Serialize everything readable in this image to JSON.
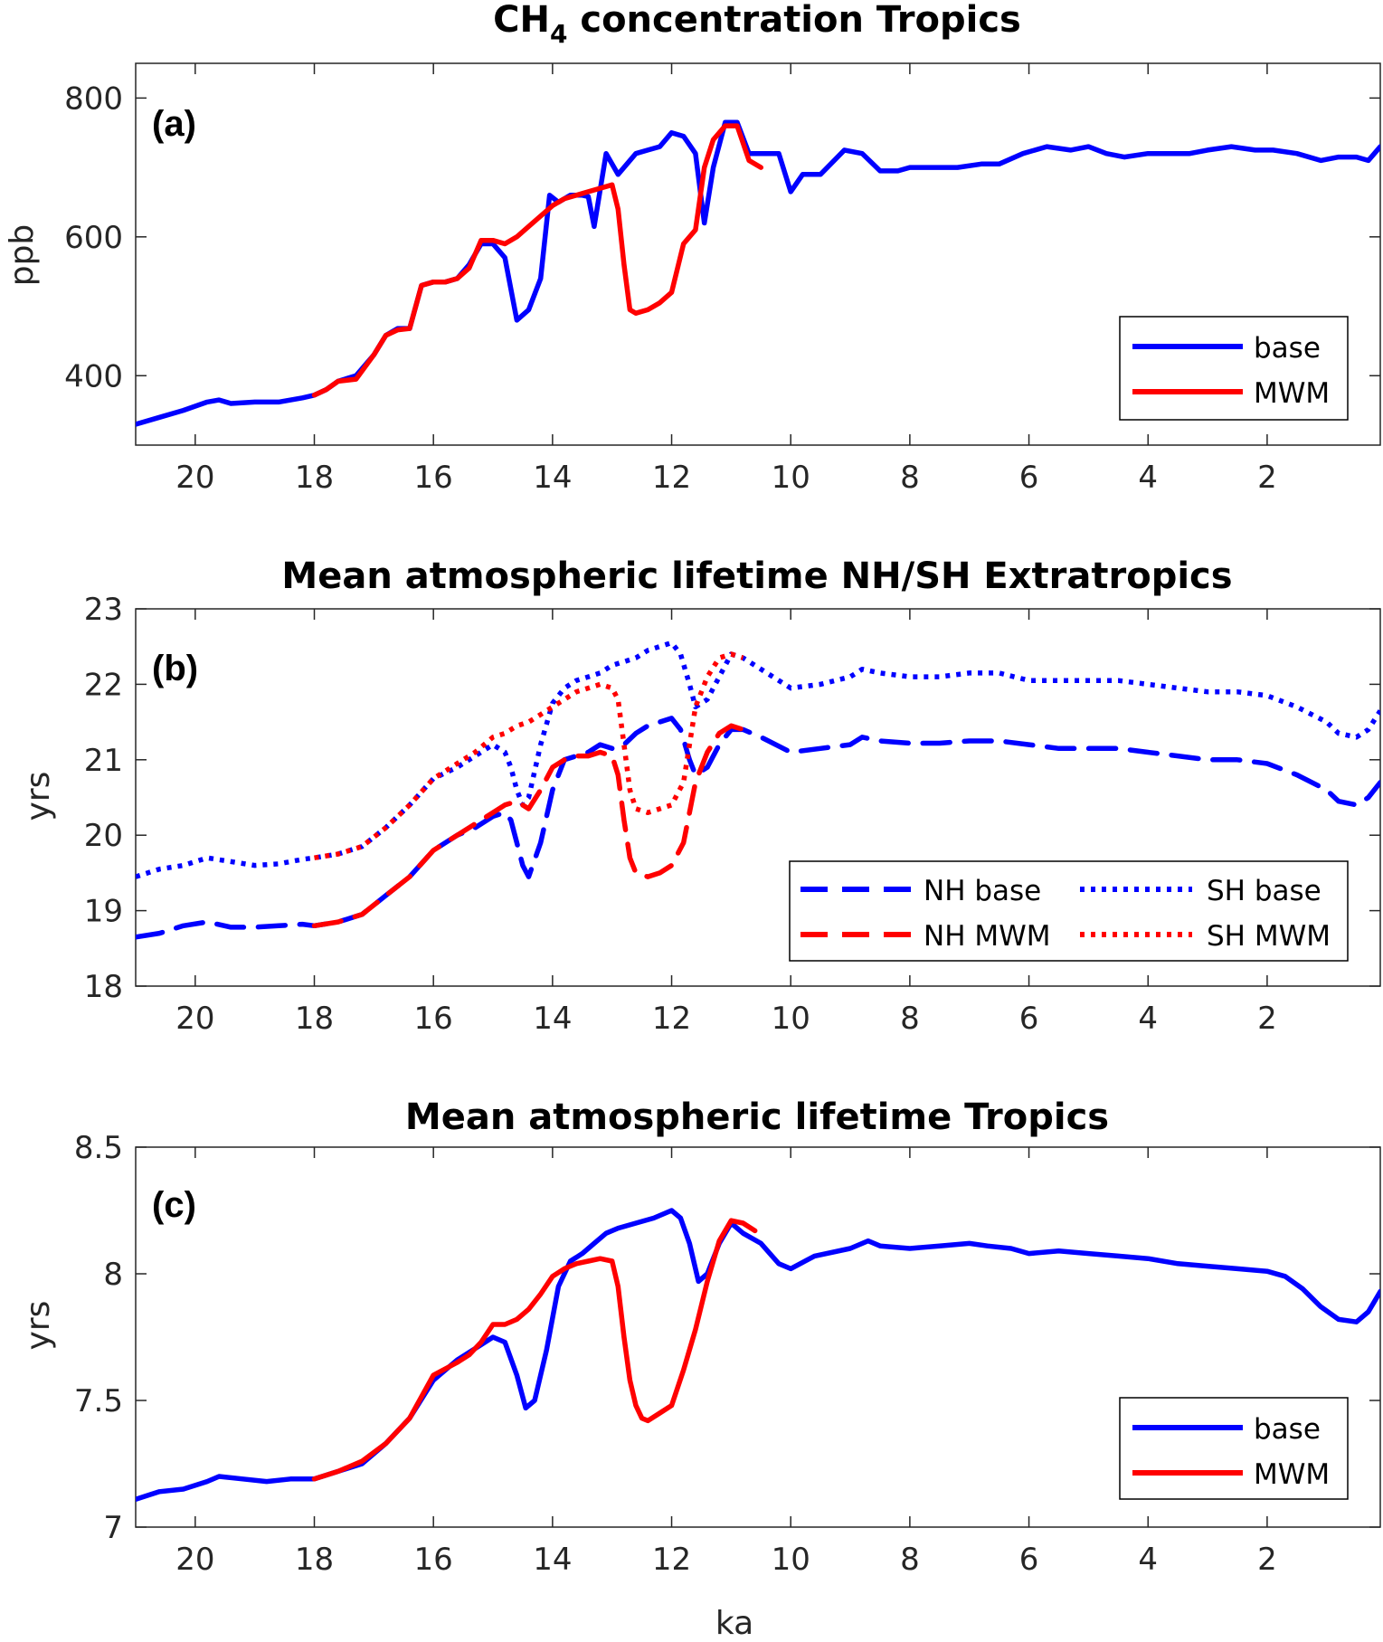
{
  "figure": {
    "x_axis_label": "ka"
  },
  "chart_data": [
    {
      "type": "line",
      "panel_label": "(a)",
      "title_main": "CH",
      "title_sub": "4",
      "title_rest": " concentration Tropics",
      "ylabel": "ppb",
      "xlabel": "",
      "x_reversed": true,
      "xlim": [
        21.0,
        0.1
      ],
      "ylim": [
        300,
        850
      ],
      "xticks": [
        20,
        18,
        16,
        14,
        12,
        10,
        8,
        6,
        4,
        2
      ],
      "yticks": [
        400,
        600,
        800
      ],
      "legend_position": "bottom-right",
      "series": [
        {
          "name": "base",
          "color": "#0000ff",
          "style": "solid",
          "x": [
            21.0,
            20.6,
            20.2,
            19.8,
            19.6,
            19.4,
            19.0,
            18.6,
            18.2,
            18.0,
            17.8,
            17.6,
            17.3,
            17.0,
            16.8,
            16.6,
            16.4,
            16.2,
            16.0,
            15.8,
            15.6,
            15.4,
            15.2,
            15.0,
            14.8,
            14.6,
            14.4,
            14.2,
            14.05,
            13.9,
            13.7,
            13.5,
            13.4,
            13.3,
            13.1,
            12.9,
            12.6,
            12.4,
            12.2,
            12.0,
            11.8,
            11.6,
            11.45,
            11.3,
            11.1,
            10.9,
            10.7,
            10.5,
            10.2,
            10.0,
            9.8,
            9.5,
            9.1,
            8.8,
            8.5,
            8.2,
            8.0,
            7.6,
            7.2,
            6.8,
            6.5,
            6.1,
            5.7,
            5.3,
            5.0,
            4.7,
            4.4,
            4.0,
            3.6,
            3.3,
            3.0,
            2.6,
            2.2,
            1.9,
            1.5,
            1.1,
            0.8,
            0.5,
            0.3,
            0.1
          ],
          "y": [
            330,
            340,
            350,
            362,
            365,
            360,
            362,
            362,
            368,
            372,
            380,
            392,
            400,
            430,
            458,
            468,
            468,
            530,
            535,
            535,
            540,
            560,
            590,
            590,
            570,
            480,
            495,
            540,
            660,
            650,
            660,
            660,
            658,
            615,
            720,
            690,
            720,
            725,
            730,
            750,
            745,
            720,
            620,
            700,
            765,
            765,
            720,
            720,
            720,
            665,
            690,
            690,
            725,
            720,
            695,
            695,
            700,
            700,
            700,
            705,
            705,
            720,
            730,
            725,
            730,
            720,
            715,
            720,
            720,
            720,
            725,
            730,
            725,
            725,
            720,
            710,
            715,
            715,
            710,
            730
          ]
        },
        {
          "name": "MWM",
          "color": "#ff0000",
          "style": "solid",
          "x": [
            18.0,
            17.8,
            17.6,
            17.3,
            17.0,
            16.8,
            16.6,
            16.4,
            16.2,
            16.0,
            15.8,
            15.6,
            15.4,
            15.2,
            15.0,
            14.8,
            14.6,
            14.4,
            14.2,
            14.0,
            13.8,
            13.6,
            13.4,
            13.2,
            13.0,
            12.9,
            12.8,
            12.7,
            12.6,
            12.4,
            12.2,
            12.0,
            11.8,
            11.6,
            11.45,
            11.3,
            11.1,
            10.9,
            10.7,
            10.5
          ],
          "y": [
            372,
            380,
            392,
            395,
            430,
            458,
            466,
            468,
            530,
            535,
            535,
            540,
            555,
            595,
            595,
            590,
            600,
            615,
            630,
            645,
            655,
            660,
            665,
            670,
            675,
            640,
            560,
            495,
            490,
            495,
            505,
            520,
            590,
            610,
            700,
            740,
            760,
            760,
            710,
            700
          ]
        }
      ]
    },
    {
      "type": "line",
      "panel_label": "(b)",
      "title": "Mean atmospheric lifetime NH/SH Extratropics",
      "ylabel": "yrs",
      "xlabel": "",
      "x_reversed": true,
      "xlim": [
        21.0,
        0.1
      ],
      "ylim": [
        18,
        23
      ],
      "xticks": [
        20,
        18,
        16,
        14,
        12,
        10,
        8,
        6,
        4,
        2
      ],
      "yticks": [
        18,
        19,
        20,
        21,
        22,
        23
      ],
      "legend_position": "bottom-right",
      "series": [
        {
          "name": "NH base",
          "color": "#0000ff",
          "style": "dashed",
          "x": [
            21.0,
            20.6,
            20.2,
            19.8,
            19.4,
            19.0,
            18.6,
            18.2,
            18.0,
            17.6,
            17.2,
            16.8,
            16.4,
            16.0,
            15.6,
            15.3,
            15.0,
            14.8,
            14.7,
            14.6,
            14.5,
            14.4,
            14.2,
            14.0,
            13.8,
            13.6,
            13.4,
            13.2,
            13.0,
            12.8,
            12.6,
            12.4,
            12.2,
            12.0,
            11.85,
            11.7,
            11.6,
            11.4,
            11.2,
            11.0,
            10.8,
            10.5,
            10.0,
            9.5,
            9.0,
            8.8,
            8.5,
            8.0,
            7.5,
            7.0,
            6.5,
            6.0,
            5.5,
            5.0,
            4.5,
            4.0,
            3.5,
            3.0,
            2.5,
            2.0,
            1.5,
            1.0,
            0.8,
            0.5,
            0.3,
            0.1
          ],
          "y": [
            18.65,
            18.7,
            18.8,
            18.85,
            18.78,
            18.78,
            18.8,
            18.82,
            18.8,
            18.85,
            18.95,
            19.2,
            19.45,
            19.8,
            20.0,
            20.1,
            20.25,
            20.3,
            20.2,
            19.9,
            19.6,
            19.45,
            19.9,
            20.6,
            21.0,
            21.05,
            21.1,
            21.2,
            21.15,
            21.2,
            21.35,
            21.45,
            21.5,
            21.55,
            21.4,
            21.0,
            20.8,
            20.9,
            21.2,
            21.4,
            21.4,
            21.3,
            21.1,
            21.15,
            21.2,
            21.3,
            21.25,
            21.22,
            21.22,
            21.25,
            21.25,
            21.2,
            21.15,
            21.15,
            21.15,
            21.1,
            21.05,
            21.0,
            21.0,
            20.95,
            20.8,
            20.6,
            20.45,
            20.4,
            20.5,
            20.7
          ]
        },
        {
          "name": "SH base",
          "color": "#0000ff",
          "style": "dotted",
          "x": [
            21.0,
            20.6,
            20.2,
            19.8,
            19.4,
            19.0,
            18.6,
            18.2,
            18.0,
            17.6,
            17.2,
            16.8,
            16.4,
            16.0,
            15.6,
            15.3,
            15.0,
            14.8,
            14.7,
            14.6,
            14.5,
            14.4,
            14.2,
            14.0,
            13.8,
            13.6,
            13.4,
            13.2,
            13.0,
            12.8,
            12.6,
            12.4,
            12.2,
            12.0,
            11.85,
            11.7,
            11.6,
            11.4,
            11.2,
            11.0,
            10.8,
            10.5,
            10.0,
            9.5,
            9.0,
            8.8,
            8.5,
            8.0,
            7.5,
            7.0,
            6.5,
            6.0,
            5.5,
            5.0,
            4.5,
            4.0,
            3.5,
            3.0,
            2.5,
            2.0,
            1.5,
            1.0,
            0.8,
            0.5,
            0.3,
            0.1
          ],
          "y": [
            19.45,
            19.55,
            19.6,
            19.7,
            19.65,
            19.6,
            19.62,
            19.68,
            19.7,
            19.75,
            19.85,
            20.1,
            20.4,
            20.75,
            20.9,
            21.05,
            21.2,
            21.1,
            20.9,
            20.6,
            20.4,
            20.5,
            21.2,
            21.75,
            21.95,
            22.05,
            22.1,
            22.15,
            22.25,
            22.3,
            22.35,
            22.45,
            22.5,
            22.55,
            22.4,
            22.0,
            21.7,
            21.8,
            22.1,
            22.4,
            22.35,
            22.2,
            21.95,
            22.0,
            22.1,
            22.2,
            22.15,
            22.1,
            22.1,
            22.15,
            22.15,
            22.05,
            22.05,
            22.05,
            22.05,
            22.0,
            21.95,
            21.9,
            21.9,
            21.85,
            21.7,
            21.5,
            21.35,
            21.3,
            21.4,
            21.65
          ]
        },
        {
          "name": "NH MWM",
          "color": "#ff0000",
          "style": "dashed",
          "x": [
            18.0,
            17.6,
            17.2,
            16.8,
            16.4,
            16.0,
            15.6,
            15.3,
            15.0,
            14.8,
            14.6,
            14.4,
            14.2,
            14.0,
            13.8,
            13.6,
            13.4,
            13.2,
            13.0,
            12.9,
            12.8,
            12.7,
            12.6,
            12.4,
            12.2,
            12.0,
            11.8,
            11.7,
            11.6,
            11.4,
            11.2,
            11.0,
            10.8
          ],
          "y": [
            18.8,
            18.85,
            18.95,
            19.2,
            19.45,
            19.8,
            20.0,
            20.15,
            20.3,
            20.4,
            20.45,
            20.35,
            20.6,
            20.9,
            21.0,
            21.05,
            21.05,
            21.1,
            21.05,
            20.8,
            20.2,
            19.7,
            19.5,
            19.45,
            19.5,
            19.6,
            19.9,
            20.3,
            20.7,
            21.1,
            21.35,
            21.45,
            21.4
          ]
        },
        {
          "name": "SH MWM",
          "color": "#ff0000",
          "style": "dotted",
          "x": [
            18.0,
            17.6,
            17.2,
            16.8,
            16.4,
            16.0,
            15.6,
            15.3,
            15.0,
            14.8,
            14.6,
            14.4,
            14.2,
            14.0,
            13.8,
            13.6,
            13.4,
            13.2,
            13.0,
            12.9,
            12.8,
            12.7,
            12.6,
            12.4,
            12.2,
            12.0,
            11.8,
            11.7,
            11.6,
            11.4,
            11.2,
            11.0,
            10.8
          ],
          "y": [
            19.7,
            19.75,
            19.85,
            20.1,
            20.4,
            20.75,
            20.95,
            21.1,
            21.3,
            21.35,
            21.45,
            21.5,
            21.6,
            21.7,
            21.8,
            21.9,
            21.95,
            22.0,
            21.95,
            21.8,
            21.2,
            20.6,
            20.35,
            20.3,
            20.35,
            20.4,
            20.7,
            21.2,
            21.7,
            22.1,
            22.35,
            22.4,
            22.35
          ]
        }
      ]
    },
    {
      "type": "line",
      "panel_label": "(c)",
      "title": "Mean atmospheric lifetime Tropics",
      "ylabel": "yrs",
      "xlabel": "ka",
      "x_reversed": true,
      "xlim": [
        21.0,
        0.1
      ],
      "ylim": [
        7.0,
        8.5
      ],
      "xticks": [
        20,
        18,
        16,
        14,
        12,
        10,
        8,
        6,
        4,
        2
      ],
      "yticks": [
        7.0,
        7.5,
        8.0,
        8.5
      ],
      "ytick_labels": [
        "7",
        "7.5",
        "8",
        "8.5"
      ],
      "legend_position": "bottom-right",
      "series": [
        {
          "name": "base",
          "color": "#0000ff",
          "style": "solid",
          "x": [
            21.0,
            20.6,
            20.2,
            19.8,
            19.6,
            19.2,
            18.8,
            18.4,
            18.0,
            17.6,
            17.2,
            16.8,
            16.4,
            16.0,
            15.6,
            15.2,
            15.0,
            14.8,
            14.6,
            14.45,
            14.3,
            14.1,
            13.9,
            13.7,
            13.5,
            13.3,
            13.1,
            12.9,
            12.6,
            12.3,
            12.0,
            11.85,
            11.7,
            11.55,
            11.4,
            11.2,
            11.0,
            10.8,
            10.5,
            10.2,
            10.0,
            9.6,
            9.0,
            8.7,
            8.5,
            8.0,
            7.5,
            7.0,
            6.7,
            6.3,
            6.0,
            5.5,
            5.0,
            4.5,
            4.0,
            3.5,
            3.0,
            2.5,
            2.0,
            1.7,
            1.4,
            1.1,
            0.8,
            0.5,
            0.3,
            0.1
          ],
          "y": [
            7.11,
            7.14,
            7.15,
            7.18,
            7.2,
            7.19,
            7.18,
            7.19,
            7.19,
            7.22,
            7.25,
            7.33,
            7.43,
            7.58,
            7.66,
            7.72,
            7.75,
            7.73,
            7.6,
            7.47,
            7.5,
            7.7,
            7.95,
            8.05,
            8.08,
            8.12,
            8.16,
            8.18,
            8.2,
            8.22,
            8.25,
            8.22,
            8.12,
            7.97,
            8.0,
            8.12,
            8.2,
            8.16,
            8.12,
            8.04,
            8.02,
            8.07,
            8.1,
            8.13,
            8.11,
            8.1,
            8.11,
            8.12,
            8.11,
            8.1,
            8.08,
            8.09,
            8.08,
            8.07,
            8.06,
            8.04,
            8.03,
            8.02,
            8.01,
            7.99,
            7.94,
            7.87,
            7.82,
            7.81,
            7.85,
            7.93
          ]
        },
        {
          "name": "MWM",
          "color": "#ff0000",
          "style": "solid",
          "x": [
            18.0,
            17.6,
            17.2,
            16.8,
            16.4,
            16.0,
            15.6,
            15.4,
            15.2,
            15.0,
            14.8,
            14.6,
            14.4,
            14.2,
            14.0,
            13.8,
            13.6,
            13.4,
            13.2,
            13.0,
            12.9,
            12.8,
            12.7,
            12.6,
            12.5,
            12.4,
            12.2,
            12.0,
            11.8,
            11.6,
            11.4,
            11.2,
            11.0,
            10.8,
            10.6
          ],
          "y": [
            7.19,
            7.22,
            7.26,
            7.33,
            7.43,
            7.6,
            7.65,
            7.68,
            7.73,
            7.8,
            7.8,
            7.82,
            7.86,
            7.92,
            7.99,
            8.02,
            8.04,
            8.05,
            8.06,
            8.05,
            7.95,
            7.75,
            7.58,
            7.48,
            7.43,
            7.42,
            7.45,
            7.48,
            7.62,
            7.78,
            7.97,
            8.13,
            8.21,
            8.2,
            8.17
          ]
        }
      ]
    }
  ]
}
